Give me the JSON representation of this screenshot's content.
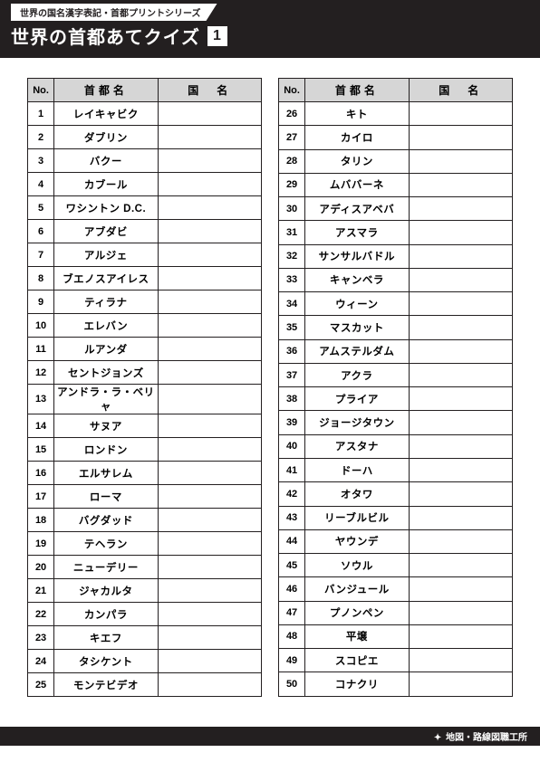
{
  "header": {
    "series_label": "世界の国名漢字表記・首都プリントシリーズ",
    "title": "世界の首都あてクイズ",
    "number": "1"
  },
  "columns": {
    "no": "No.",
    "capital": "首都名",
    "country": "国　名"
  },
  "left_rows": [
    {
      "no": "1",
      "capital": "レイキャビク",
      "country": ""
    },
    {
      "no": "2",
      "capital": "ダブリン",
      "country": ""
    },
    {
      "no": "3",
      "capital": "バクー",
      "country": ""
    },
    {
      "no": "4",
      "capital": "カブール",
      "country": ""
    },
    {
      "no": "5",
      "capital": "ワシントン D.C.",
      "country": ""
    },
    {
      "no": "6",
      "capital": "アブダビ",
      "country": ""
    },
    {
      "no": "7",
      "capital": "アルジェ",
      "country": ""
    },
    {
      "no": "8",
      "capital": "ブエノスアイレス",
      "country": ""
    },
    {
      "no": "9",
      "capital": "ティラナ",
      "country": ""
    },
    {
      "no": "10",
      "capital": "エレバン",
      "country": ""
    },
    {
      "no": "11",
      "capital": "ルアンダ",
      "country": ""
    },
    {
      "no": "12",
      "capital": "セントジョンズ",
      "country": ""
    },
    {
      "no": "13",
      "capital": "アンドラ・ラ・ベリャ",
      "country": ""
    },
    {
      "no": "14",
      "capital": "サヌア",
      "country": ""
    },
    {
      "no": "15",
      "capital": "ロンドン",
      "country": ""
    },
    {
      "no": "16",
      "capital": "エルサレム",
      "country": ""
    },
    {
      "no": "17",
      "capital": "ローマ",
      "country": ""
    },
    {
      "no": "18",
      "capital": "バグダッド",
      "country": ""
    },
    {
      "no": "19",
      "capital": "テヘラン",
      "country": ""
    },
    {
      "no": "20",
      "capital": "ニューデリー",
      "country": ""
    },
    {
      "no": "21",
      "capital": "ジャカルタ",
      "country": ""
    },
    {
      "no": "22",
      "capital": "カンパラ",
      "country": ""
    },
    {
      "no": "23",
      "capital": "キエフ",
      "country": ""
    },
    {
      "no": "24",
      "capital": "タシケント",
      "country": ""
    },
    {
      "no": "25",
      "capital": "モンテビデオ",
      "country": ""
    }
  ],
  "right_rows": [
    {
      "no": "26",
      "capital": "キト",
      "country": ""
    },
    {
      "no": "27",
      "capital": "カイロ",
      "country": ""
    },
    {
      "no": "28",
      "capital": "タリン",
      "country": ""
    },
    {
      "no": "29",
      "capital": "ムババーネ",
      "country": ""
    },
    {
      "no": "30",
      "capital": "アディスアベバ",
      "country": ""
    },
    {
      "no": "31",
      "capital": "アスマラ",
      "country": ""
    },
    {
      "no": "32",
      "capital": "サンサルバドル",
      "country": ""
    },
    {
      "no": "33",
      "capital": "キャンベラ",
      "country": ""
    },
    {
      "no": "34",
      "capital": "ウィーン",
      "country": ""
    },
    {
      "no": "35",
      "capital": "マスカット",
      "country": ""
    },
    {
      "no": "36",
      "capital": "アムステルダム",
      "country": ""
    },
    {
      "no": "37",
      "capital": "アクラ",
      "country": ""
    },
    {
      "no": "38",
      "capital": "プライア",
      "country": ""
    },
    {
      "no": "39",
      "capital": "ジョージタウン",
      "country": ""
    },
    {
      "no": "40",
      "capital": "アスタナ",
      "country": ""
    },
    {
      "no": "41",
      "capital": "ドーハ",
      "country": ""
    },
    {
      "no": "42",
      "capital": "オタワ",
      "country": ""
    },
    {
      "no": "43",
      "capital": "リーブルビル",
      "country": ""
    },
    {
      "no": "44",
      "capital": "ヤウンデ",
      "country": ""
    },
    {
      "no": "45",
      "capital": "ソウル",
      "country": ""
    },
    {
      "no": "46",
      "capital": "バンジュール",
      "country": ""
    },
    {
      "no": "47",
      "capital": "プノンペン",
      "country": ""
    },
    {
      "no": "48",
      "capital": "平壌",
      "country": ""
    },
    {
      "no": "49",
      "capital": "スコピエ",
      "country": ""
    },
    {
      "no": "50",
      "capital": "コナクリ",
      "country": ""
    }
  ],
  "footer": {
    "credit": "地図・路線図職工所"
  },
  "style": {
    "header_bg": "#231f20",
    "header_fg": "#ffffff",
    "th_bg": "#d6d6d6",
    "border_color": "#231f20",
    "page_bg": "#ffffff"
  }
}
